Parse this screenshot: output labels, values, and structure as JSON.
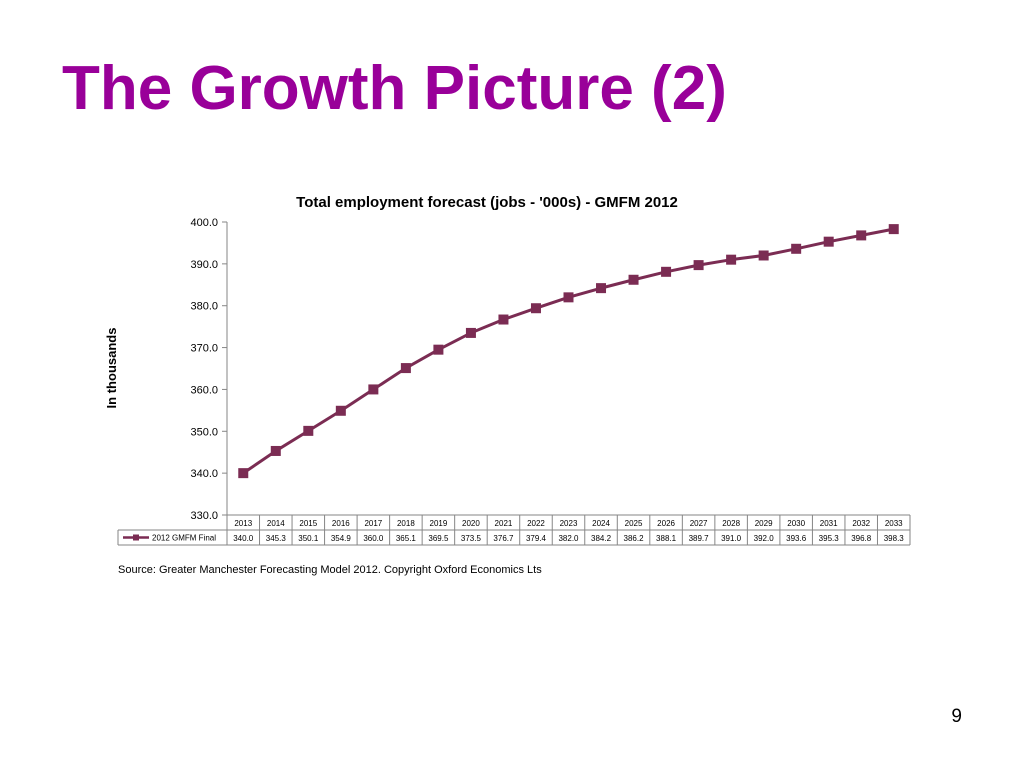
{
  "slide": {
    "title": "The Growth Picture (2)",
    "source": "Source: Greater Manchester Forecasting Model 2012. Copyright Oxford Economics Lts",
    "page_number": "9",
    "title_color": "#990099"
  },
  "chart_data": {
    "type": "line",
    "title": "Total employment forecast (jobs - '000s) - GMFM 2012",
    "xlabel": "",
    "ylabel": "In thousands",
    "ylim": [
      330,
      400
    ],
    "y_ticks": [
      "330.0",
      "340.0",
      "350.0",
      "360.0",
      "370.0",
      "380.0",
      "390.0",
      "400.0"
    ],
    "grid": false,
    "legend": "in data table",
    "categories": [
      "2013",
      "2014",
      "2015",
      "2016",
      "2017",
      "2018",
      "2019",
      "2020",
      "2021",
      "2022",
      "2023",
      "2024",
      "2025",
      "2026",
      "2027",
      "2028",
      "2029",
      "2030",
      "2031",
      "2032",
      "2033"
    ],
    "series": [
      {
        "name": "2012 GMFM Final",
        "color": "#7b2c53",
        "values": [
          340.0,
          345.3,
          350.1,
          354.9,
          360.0,
          365.1,
          369.5,
          373.5,
          376.7,
          379.4,
          382.0,
          384.2,
          386.2,
          388.1,
          389.7,
          391.0,
          392.0,
          393.6,
          395.3,
          396.8,
          398.3
        ],
        "labels": [
          "340.0",
          "345.3",
          "350.1",
          "354.9",
          "360.0",
          "365.1",
          "369.5",
          "373.5",
          "376.7",
          "379.4",
          "382.0",
          "384.2",
          "386.2",
          "388.1",
          "389.7",
          "391.0",
          "392.0",
          "393.6",
          "395.3",
          "396.8",
          "398.3"
        ]
      }
    ]
  }
}
